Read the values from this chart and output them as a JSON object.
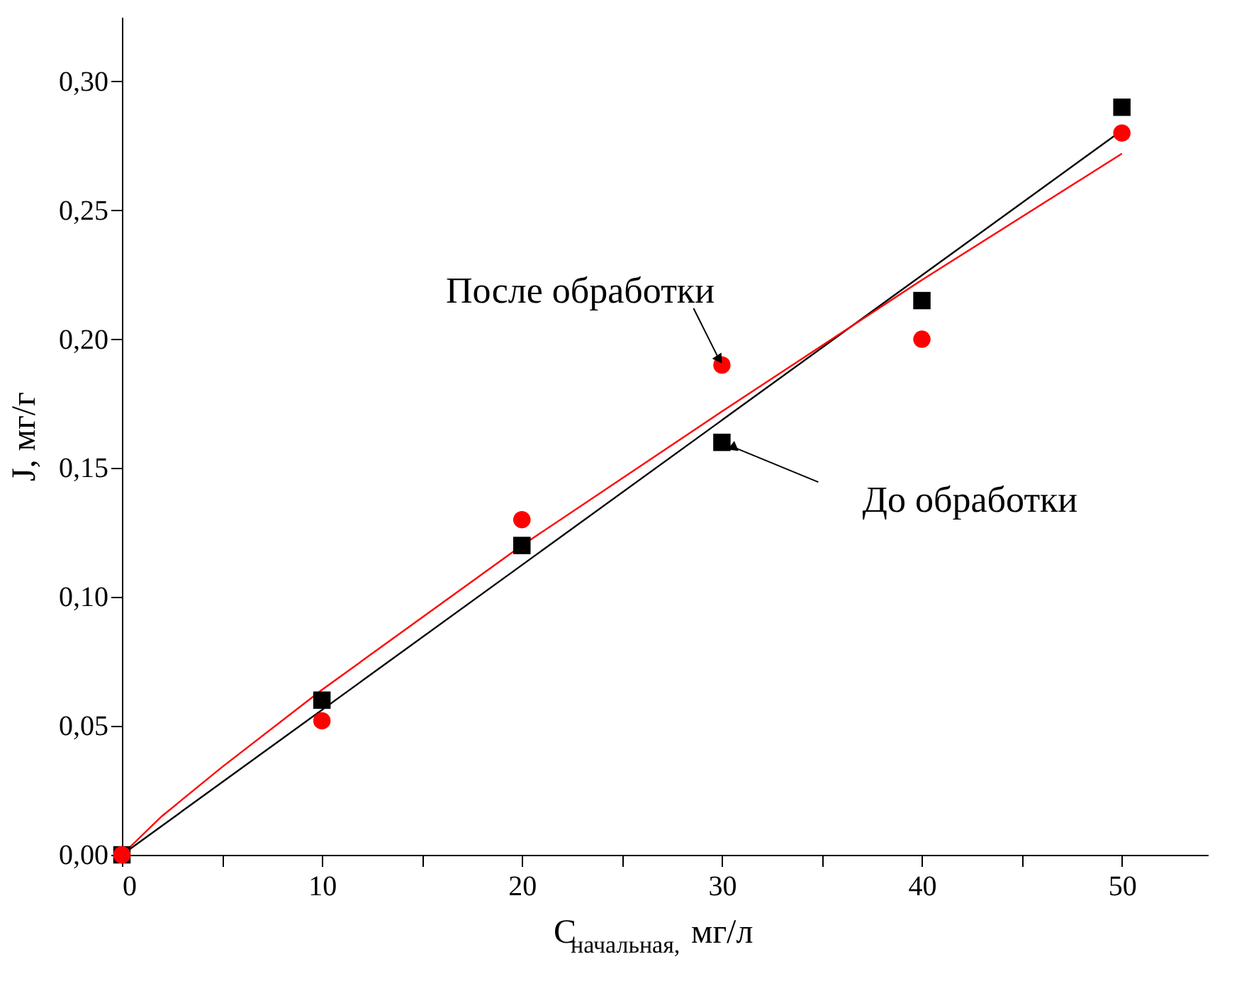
{
  "chart_data": {
    "type": "scatter",
    "xlabel": "C$_{начальная,}$ мг/л",
    "ylabel": "J, мг/г",
    "xlim": [
      0,
      54.3
    ],
    "ylim": [
      0,
      0.325
    ],
    "xticks": [
      0,
      {
        "value": 5,
        "label": null
      },
      10,
      {
        "value": 15,
        "label": null
      },
      20,
      {
        "value": 25,
        "label": null
      },
      30,
      {
        "value": 35,
        "label": null
      },
      40,
      {
        "value": 45,
        "label": null
      },
      50
    ],
    "yticks": [
      {
        "value": 0,
        "label": "0,00"
      },
      {
        "value": 0.05,
        "label": "0,05"
      },
      {
        "value": 0.1,
        "label": "0,10"
      },
      {
        "value": 0.15,
        "label": "0,15"
      },
      {
        "value": 0.2,
        "label": "0,20"
      },
      {
        "value": 0.25,
        "label": "0,25"
      },
      {
        "value": 0.3,
        "label": "0,30"
      }
    ],
    "grid": false,
    "series": [
      {
        "type": "line",
        "color": "#000000",
        "marker": "none",
        "line_style": "solid",
        "x": [
          0,
          50
        ],
        "values": [
          0,
          0.281
        ]
      },
      {
        "type": "line",
        "color": "#ff0000",
        "marker": "none",
        "line_style": "solid",
        "x": [
          0,
          2,
          5,
          10,
          20,
          30,
          40,
          50
        ],
        "values": [
          0,
          0.015,
          0.034,
          0.064,
          0.12,
          0.172,
          0.223,
          0.272
        ]
      },
      {
        "type": "scatter",
        "color": "#000000",
        "marker": "square",
        "x": [
          0,
          10,
          20,
          30,
          40,
          50
        ],
        "values": [
          0,
          0.06,
          0.12,
          0.16,
          0.215,
          0.29
        ]
      },
      {
        "type": "scatter",
        "color": "#ff0000",
        "marker": "circle",
        "x": [
          0,
          10,
          20,
          30,
          40,
          50
        ],
        "values": [
          0,
          0.052,
          0.13,
          0.19,
          0.2,
          0.28
        ]
      }
    ],
    "annotations": [
      {
        "text": "После обработки",
        "x": 30,
        "y": 0.19
      },
      {
        "text": "До обработки",
        "x": 30,
        "y": 0.16
      }
    ]
  }
}
